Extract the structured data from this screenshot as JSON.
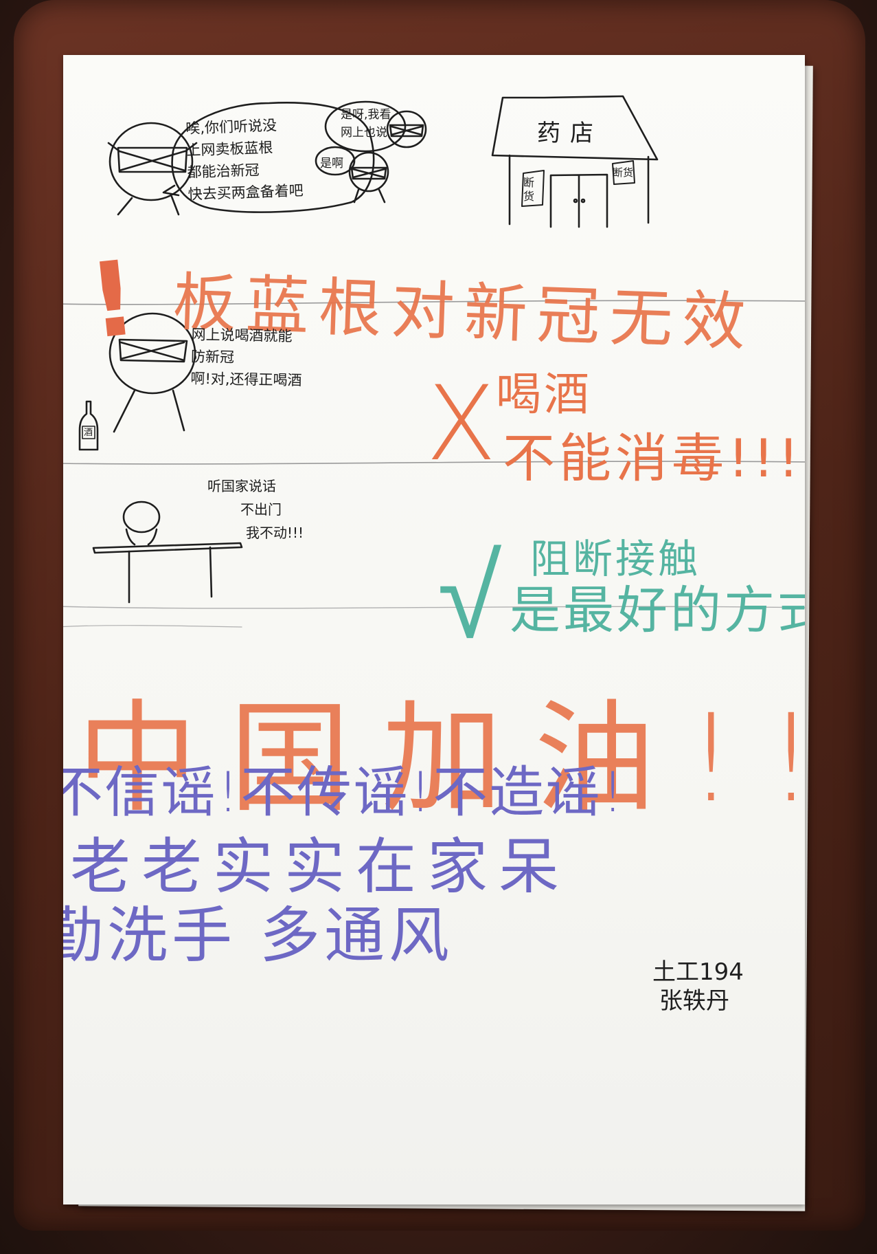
{
  "scene": {
    "folder_color": "#5a2a1c",
    "paper_color": "#f8f8f5"
  },
  "section1": {
    "person_speech_lines": [
      "唉,你们听说没",
      "上网卖板蓝根",
      "都能治新冠",
      "快去买两盒备着吧"
    ],
    "listener_speech_lines": [
      "是呀,我看",
      "网上也说"
    ],
    "small_bubble": "是啊",
    "shop_sign": "药店",
    "sold_out_tag": "断货",
    "headline": "板蓝根对新冠无效",
    "headline_color": "#e8744a"
  },
  "section2": {
    "speech_lines": [
      "网上说喝酒就能",
      "防新冠",
      "啊!对,还得正喝酒"
    ],
    "bottle_label": "酒",
    "headline_line1": "喝酒",
    "headline_line2": "不能消毒!!!",
    "cross_mark": "X",
    "headline_color": "#e8744a"
  },
  "section3": {
    "speech_lines": [
      "听国家说话",
      "不出门",
      "我不动!!!"
    ],
    "headline_line1": "阻断接触",
    "headline_line2": "是最好的方式",
    "check_mark": "√",
    "headline_color": "#55b4a1"
  },
  "section4": {
    "cheer": "中国加油!!",
    "cheer_color": "#e8744a",
    "rumor_line": "不信谣!不传谣!不造谣!",
    "stay_line": "老老实实在家呆",
    "wash_line": "勤洗手 多通风",
    "text_color": "#6d68c4"
  },
  "signature": {
    "class_name": "土工194",
    "student_name": "张轶丹"
  }
}
